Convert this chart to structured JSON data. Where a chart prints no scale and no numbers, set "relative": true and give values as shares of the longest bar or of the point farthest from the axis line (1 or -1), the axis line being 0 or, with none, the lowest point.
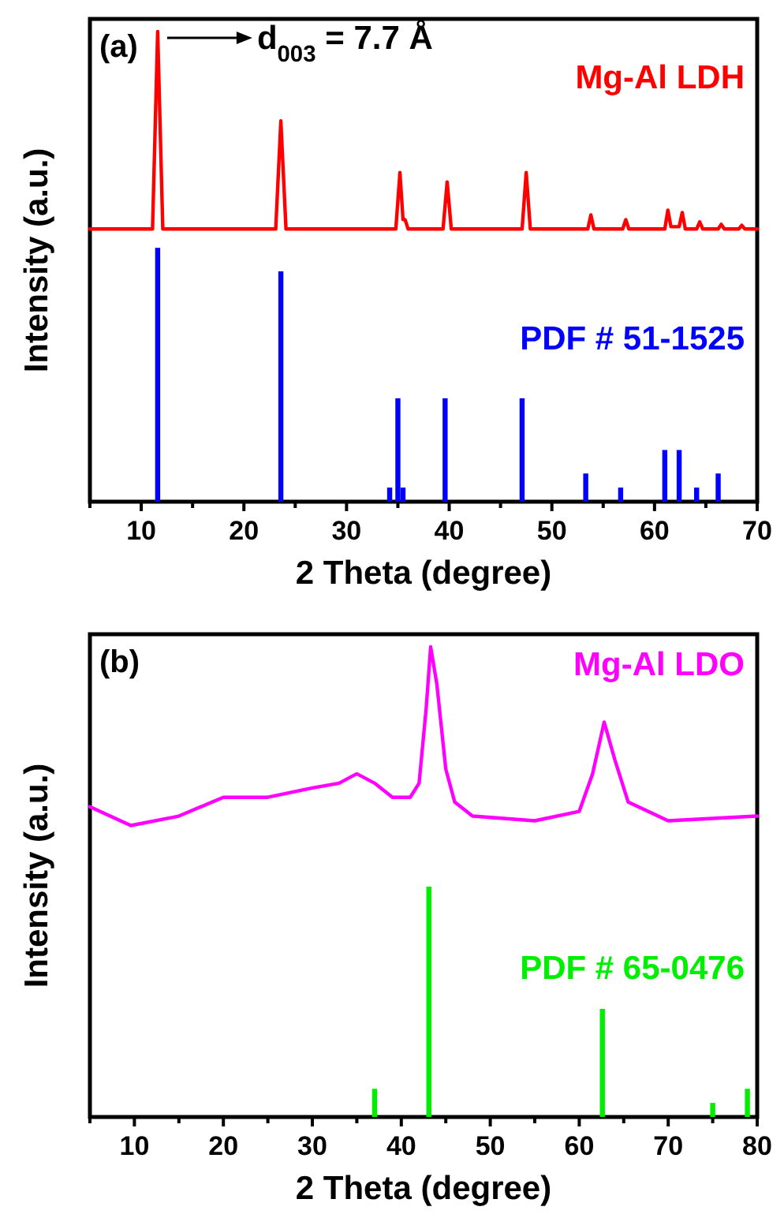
{
  "chart_data": [
    {
      "type": "line",
      "relative": true,
      "xlabel": "2 Theta (degree)",
      "ylabel": "Intensity (a.u.)",
      "xlim": [
        5,
        70
      ],
      "xticks": [
        {
          "value": 5,
          "label": null
        },
        10,
        {
          "value": 15,
          "label": null
        },
        20,
        {
          "value": 25,
          "label": null
        },
        30,
        {
          "value": 35,
          "label": null
        },
        40,
        {
          "value": 45,
          "label": null
        },
        50,
        {
          "value": 55,
          "label": null
        },
        60,
        {
          "value": 65,
          "label": null
        },
        70
      ],
      "annotations": [
        "(a)",
        {
          "text": "d$_{003}$ = 7.7 Å",
          "x": 11.6,
          "y": 1
        }
      ],
      "series": [
        {
          "name": "Mg-Al LDH",
          "color": "#ff0000",
          "x": [
            5,
            11.1,
            11.6,
            12.1,
            23.1,
            23.6,
            24.1,
            34.8,
            35.2,
            35.5,
            35.7,
            36,
            39.4,
            39.8,
            40.2,
            47.1,
            47.5,
            47.9,
            53.5,
            53.8,
            54.1,
            56.9,
            57.2,
            57.5,
            61,
            61.3,
            61.6,
            62.4,
            62.7,
            63,
            64.1,
            64.4,
            64.7,
            66.2,
            66.5,
            66.8,
            68.2,
            68.5,
            68.8,
            70
          ],
          "values": [
            0.58,
            0.58,
            1,
            0.58,
            0.58,
            0.81,
            0.58,
            0.58,
            0.7,
            0.6,
            0.6,
            0.58,
            0.58,
            0.68,
            0.58,
            0.58,
            0.7,
            0.58,
            0.58,
            0.61,
            0.58,
            0.58,
            0.6,
            0.58,
            0.58,
            0.62,
            0.585,
            0.585,
            0.615,
            0.58,
            0.58,
            0.595,
            0.58,
            0.58,
            0.59,
            0.58,
            0.58,
            0.588,
            0.58,
            0.58
          ]
        },
        {
          "name": "PDF # 51-1525",
          "type": "bar",
          "color": "#0000ff",
          "x": [
            11.6,
            23.6,
            34.2,
            35,
            35.5,
            39.6,
            47.1,
            53.3,
            56.7,
            61,
            62.4,
            64.1,
            66.2
          ],
          "values": [
            0.54,
            0.49,
            0.03,
            0.22,
            0.03,
            0.22,
            0.22,
            0.06,
            0.03,
            0.11,
            0.11,
            0.03,
            0.06
          ]
        }
      ]
    },
    {
      "type": "line",
      "relative": true,
      "xlabel": "2 Theta (degree)",
      "ylabel": "Intensity (a.u.)",
      "xlim": [
        5,
        80
      ],
      "xticks": [
        {
          "value": 5,
          "label": null
        },
        10,
        {
          "value": 15,
          "label": null
        },
        20,
        {
          "value": 25,
          "label": null
        },
        30,
        {
          "value": 35,
          "label": null
        },
        40,
        {
          "value": 45,
          "label": null
        },
        50,
        {
          "value": 55,
          "label": null
        },
        60,
        {
          "value": 65,
          "label": null
        },
        70,
        {
          "value": 75,
          "label": null
        },
        80
      ],
      "annotations": [
        "(b)"
      ],
      "series": [
        {
          "name": "Mg-Al LDO",
          "color": "#ff00ff",
          "x": [
            5,
            9.6,
            15,
            20,
            25,
            30,
            33,
            35,
            37,
            39,
            41,
            42,
            42.8,
            43.3,
            44,
            45,
            46,
            48,
            55,
            60,
            61.5,
            62.8,
            64,
            65.5,
            70,
            80
          ],
          "values": [
            0.66,
            0.62,
            0.64,
            0.68,
            0.68,
            0.7,
            0.71,
            0.73,
            0.71,
            0.68,
            0.68,
            0.71,
            0.87,
            1,
            0.92,
            0.74,
            0.67,
            0.64,
            0.63,
            0.65,
            0.73,
            0.84,
            0.76,
            0.67,
            0.63,
            0.64
          ]
        },
        {
          "name": "PDF # 65-0476",
          "type": "bar",
          "color": "#00ee00",
          "x": [
            37,
            43.1,
            62.6,
            75,
            78.9
          ],
          "values": [
            0.06,
            0.49,
            0.23,
            0.03,
            0.06
          ]
        }
      ]
    }
  ]
}
